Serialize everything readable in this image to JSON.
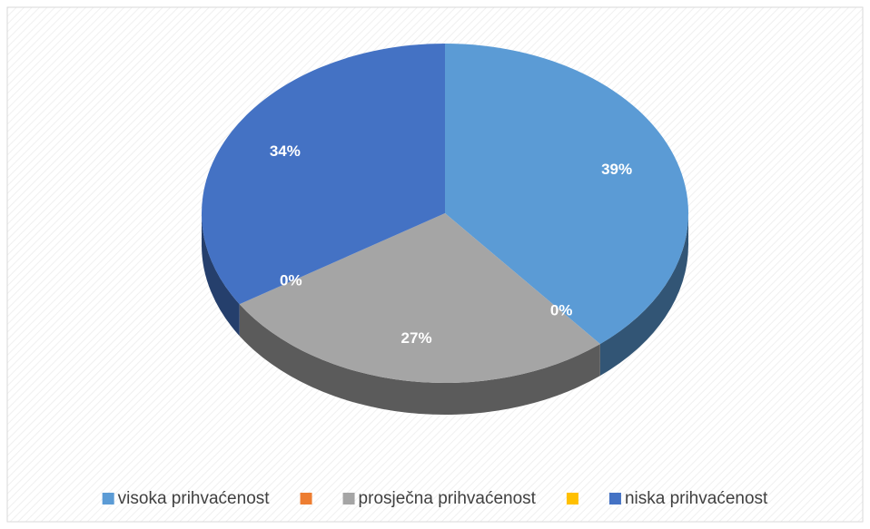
{
  "chart_data": {
    "type": "pie",
    "categories": [
      "visoka prihvaćenost",
      null,
      "prosječna prihvaćenost",
      null,
      "niska prihvaćenost"
    ],
    "values": [
      39,
      0,
      27,
      0,
      34
    ],
    "value_labels": [
      "39%",
      "0%",
      "27%",
      "0%",
      "34%"
    ],
    "colors": [
      "#5b9bd5",
      "#ed7d31",
      "#a5a5a5",
      "#ffc000",
      "#4472c4"
    ],
    "legend": "bottom"
  }
}
